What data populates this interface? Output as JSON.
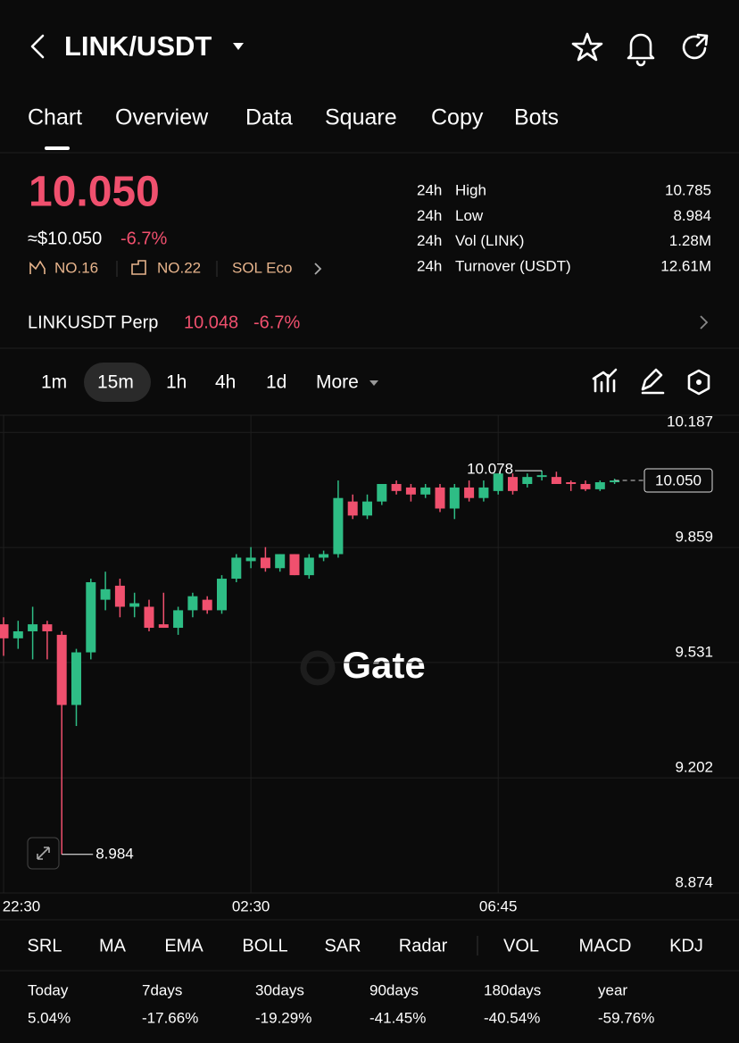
{
  "header": {
    "title": "LINK/USDT"
  },
  "tabs": [
    "Chart",
    "Overview",
    "Data",
    "Square",
    "Copy",
    "Bots"
  ],
  "price": {
    "last": "10.050",
    "usd": "≈$10.050",
    "change": "-6.7%"
  },
  "badges": [
    "NO.16",
    "NO.22",
    "SOL Eco"
  ],
  "stats": [
    {
      "period": "24h",
      "label": "High",
      "value": "10.785"
    },
    {
      "period": "24h",
      "label": "Low",
      "value": "8.984"
    },
    {
      "period": "24h",
      "label": "Vol (LINK)",
      "value": "1.28M"
    },
    {
      "period": "24h",
      "label": "Turnover (USDT)",
      "value": "12.61M"
    }
  ],
  "perp": {
    "name": "LINKUSDT Perp",
    "price": "10.048",
    "change": "-6.7%"
  },
  "intervals": [
    "1m",
    "15m",
    "1h",
    "4h",
    "1d",
    "More"
  ],
  "chart_data": {
    "type": "candlestick",
    "categories": [
      "22:30",
      null,
      null,
      null,
      null,
      null,
      null,
      null,
      null,
      null,
      null,
      null,
      null,
      null,
      null,
      null,
      null,
      "02:30",
      null,
      null,
      null,
      null,
      null,
      null,
      null,
      null,
      null,
      null,
      null,
      null,
      null,
      null,
      null,
      null,
      "06:45",
      null,
      null,
      null,
      null,
      null,
      null,
      null,
      null
    ],
    "open": [
      9.64,
      9.6,
      9.62,
      9.64,
      9.61,
      9.41,
      9.56,
      9.71,
      9.75,
      9.69,
      9.69,
      9.64,
      9.63,
      9.68,
      9.71,
      9.68,
      9.77,
      9.82,
      9.83,
      9.8,
      9.84,
      9.78,
      9.83,
      9.84,
      9.99,
      9.95,
      9.99,
      10.04,
      10.03,
      10.01,
      10.03,
      9.97,
      10.03,
      10.0,
      10.02,
      10.06,
      10.04,
      10.06,
      10.06,
      10.045,
      10.04,
      10.025,
      10.045
    ],
    "high": [
      9.66,
      9.65,
      9.69,
      9.65,
      9.62,
      9.57,
      9.77,
      9.79,
      9.77,
      9.73,
      9.71,
      9.73,
      9.69,
      9.73,
      9.72,
      9.78,
      9.84,
      9.86,
      9.86,
      9.84,
      9.84,
      9.84,
      9.85,
      10.05,
      10.01,
      10.01,
      10.04,
      10.05,
      10.04,
      10.04,
      10.04,
      10.04,
      10.05,
      10.05,
      10.07,
      10.07,
      10.07,
      10.078,
      10.075,
      10.05,
      10.05,
      10.05,
      10.055
    ],
    "low": [
      9.55,
      9.57,
      9.54,
      9.54,
      8.984,
      9.35,
      9.54,
      9.68,
      9.66,
      9.66,
      9.62,
      9.63,
      9.61,
      9.66,
      9.67,
      9.67,
      9.76,
      9.8,
      9.79,
      9.79,
      9.78,
      9.77,
      9.82,
      9.83,
      9.94,
      9.94,
      9.98,
      10.01,
      9.99,
      10.0,
      9.96,
      9.94,
      9.99,
      9.99,
      10.01,
      10.01,
      10.03,
      10.05,
      10.04,
      10.02,
      10.02,
      10.02,
      10.04
    ],
    "close": [
      9.6,
      9.62,
      9.64,
      9.62,
      9.41,
      9.56,
      9.76,
      9.74,
      9.69,
      9.7,
      9.63,
      9.63,
      9.68,
      9.72,
      9.68,
      9.77,
      9.83,
      9.83,
      9.8,
      9.84,
      9.78,
      9.83,
      9.84,
      10.0,
      9.95,
      9.99,
      10.04,
      10.02,
      10.01,
      10.03,
      9.97,
      10.03,
      10.0,
      10.03,
      10.07,
      10.02,
      10.06,
      10.065,
      10.04,
      10.04,
      10.025,
      10.045,
      10.05
    ],
    "up_color": "#2ebd85",
    "down_color": "#f0506e",
    "ylim": [
      8.874,
      10.236
    ],
    "yticks": [
      10.187,
      9.859,
      9.531,
      9.202,
      8.874
    ],
    "grid": true,
    "high_label": 10.078,
    "low_label": 8.984,
    "last_price": {
      "value": 10.05,
      "label": "10.050"
    },
    "watermark": "Gate"
  },
  "indicators": [
    "SRL",
    "MA",
    "EMA",
    "BOLL",
    "SAR",
    "Radar",
    "VOL",
    "MACD",
    "KDJ"
  ],
  "performance": [
    {
      "period": "Today",
      "change": "5.04%"
    },
    {
      "period": "7days",
      "change": "-17.66%"
    },
    {
      "period": "30days",
      "change": "-19.29%"
    },
    {
      "period": "90days",
      "change": "-41.45%"
    },
    {
      "period": "180days",
      "change": "-40.54%"
    },
    {
      "period": "year",
      "change": "-59.76%"
    }
  ]
}
